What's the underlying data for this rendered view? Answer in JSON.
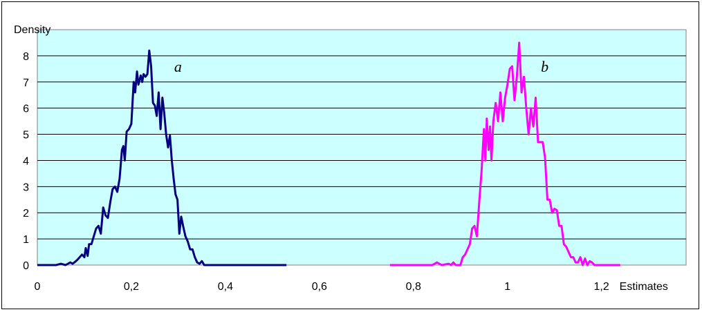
{
  "chart_data": {
    "type": "line",
    "xlabel": "Estimates",
    "ylabel": "Density",
    "xlim": [
      0,
      1.38
    ],
    "ylim": [
      0,
      9
    ],
    "x_ticks": [
      "0",
      "0,2",
      "0,4",
      "0,6",
      "0,8",
      "1",
      "1,2"
    ],
    "x_tick_values": [
      0,
      0.2,
      0.4,
      0.6,
      0.8,
      1.0,
      1.2
    ],
    "y_ticks": [
      "0",
      "1",
      "2",
      "3",
      "4",
      "5",
      "6",
      "7",
      "8"
    ],
    "y_tick_values": [
      0,
      1,
      2,
      3,
      4,
      5,
      6,
      7,
      8
    ],
    "grid": "horizontal",
    "plot_background": "#ccffff",
    "annotations": [
      {
        "text": "a",
        "x": 0.3,
        "y": 7.5
      },
      {
        "text": "b",
        "x": 1.08,
        "y": 7.5
      }
    ],
    "series": [
      {
        "color": "#000080",
        "points": [
          [
            0.0,
            0
          ],
          [
            0.04,
            0
          ],
          [
            0.05,
            0.05
          ],
          [
            0.06,
            0
          ],
          [
            0.07,
            0.1
          ],
          [
            0.075,
            0.05
          ],
          [
            0.08,
            0.12
          ],
          [
            0.085,
            0.2
          ],
          [
            0.09,
            0.3
          ],
          [
            0.095,
            0.4
          ],
          [
            0.1,
            0.3
          ],
          [
            0.103,
            0.65
          ],
          [
            0.107,
            0.35
          ],
          [
            0.11,
            0.8
          ],
          [
            0.115,
            0.8
          ],
          [
            0.12,
            1.1
          ],
          [
            0.125,
            1.4
          ],
          [
            0.13,
            1.5
          ],
          [
            0.135,
            1.2
          ],
          [
            0.14,
            2.2
          ],
          [
            0.145,
            1.9
          ],
          [
            0.15,
            1.8
          ],
          [
            0.155,
            2.4
          ],
          [
            0.16,
            2.9
          ],
          [
            0.165,
            3.0
          ],
          [
            0.17,
            2.8
          ],
          [
            0.175,
            3.3
          ],
          [
            0.18,
            4.4
          ],
          [
            0.183,
            4.55
          ],
          [
            0.186,
            4.0
          ],
          [
            0.19,
            5.1
          ],
          [
            0.195,
            5.2
          ],
          [
            0.2,
            5.4
          ],
          [
            0.205,
            7.0
          ],
          [
            0.208,
            6.6
          ],
          [
            0.212,
            7.4
          ],
          [
            0.215,
            6.9
          ],
          [
            0.22,
            7.25
          ],
          [
            0.223,
            7.0
          ],
          [
            0.226,
            7.3
          ],
          [
            0.23,
            7.2
          ],
          [
            0.234,
            7.3
          ],
          [
            0.238,
            8.2
          ],
          [
            0.242,
            7.6
          ],
          [
            0.246,
            6.2
          ],
          [
            0.25,
            6.1
          ],
          [
            0.254,
            5.7
          ],
          [
            0.258,
            6.6
          ],
          [
            0.262,
            5.2
          ],
          [
            0.266,
            6.4
          ],
          [
            0.27,
            5.8
          ],
          [
            0.274,
            5.0
          ],
          [
            0.278,
            4.5
          ],
          [
            0.282,
            4.95
          ],
          [
            0.286,
            4.0
          ],
          [
            0.29,
            3.3
          ],
          [
            0.294,
            2.7
          ],
          [
            0.298,
            2.5
          ],
          [
            0.302,
            1.2
          ],
          [
            0.306,
            1.85
          ],
          [
            0.31,
            1.5
          ],
          [
            0.315,
            1.1
          ],
          [
            0.32,
            0.9
          ],
          [
            0.325,
            0.6
          ],
          [
            0.33,
            0.6
          ],
          [
            0.335,
            0.3
          ],
          [
            0.34,
            0.1
          ],
          [
            0.345,
            0.05
          ],
          [
            0.35,
            0.15
          ],
          [
            0.355,
            0.0
          ],
          [
            0.36,
            0.0
          ],
          [
            0.53,
            0.0
          ]
        ]
      },
      {
        "color": "#ff00ff",
        "points": [
          [
            0.75,
            0
          ],
          [
            0.84,
            0
          ],
          [
            0.85,
            0.1
          ],
          [
            0.86,
            0
          ],
          [
            0.875,
            0.05
          ],
          [
            0.88,
            0.0
          ],
          [
            0.885,
            0.1
          ],
          [
            0.89,
            0.0
          ],
          [
            0.9,
            0.0
          ],
          [
            0.905,
            0.3
          ],
          [
            0.91,
            0.4
          ],
          [
            0.915,
            0.6
          ],
          [
            0.92,
            0.8
          ],
          [
            0.925,
            1.4
          ],
          [
            0.93,
            1.5
          ],
          [
            0.935,
            1.1
          ],
          [
            0.94,
            2.4
          ],
          [
            0.945,
            3.6
          ],
          [
            0.95,
            5.2
          ],
          [
            0.953,
            4.0
          ],
          [
            0.956,
            5.6
          ],
          [
            0.96,
            4.4
          ],
          [
            0.963,
            5.3
          ],
          [
            0.966,
            4.0
          ],
          [
            0.97,
            5.5
          ],
          [
            0.975,
            6.2
          ],
          [
            0.98,
            5.5
          ],
          [
            0.985,
            6.6
          ],
          [
            0.99,
            5.5
          ],
          [
            0.995,
            6.4
          ],
          [
            1.0,
            6.9
          ],
          [
            1.005,
            7.5
          ],
          [
            1.01,
            7.6
          ],
          [
            1.015,
            6.3
          ],
          [
            1.02,
            7.2
          ],
          [
            1.025,
            8.5
          ],
          [
            1.03,
            6.6
          ],
          [
            1.035,
            7.2
          ],
          [
            1.04,
            6.0
          ],
          [
            1.045,
            5.0
          ],
          [
            1.05,
            6.0
          ],
          [
            1.055,
            5.3
          ],
          [
            1.06,
            6.4
          ],
          [
            1.065,
            4.7
          ],
          [
            1.07,
            4.7
          ],
          [
            1.075,
            4.7
          ],
          [
            1.08,
            4.1
          ],
          [
            1.085,
            2.5
          ],
          [
            1.09,
            2.5
          ],
          [
            1.095,
            2.0
          ],
          [
            1.1,
            2.15
          ],
          [
            1.105,
            2.1
          ],
          [
            1.11,
            1.5
          ],
          [
            1.115,
            1.5
          ],
          [
            1.12,
            0.8
          ],
          [
            1.125,
            0.7
          ],
          [
            1.13,
            0.5
          ],
          [
            1.135,
            0.3
          ],
          [
            1.14,
            0.3
          ],
          [
            1.145,
            0.1
          ],
          [
            1.15,
            0.1
          ],
          [
            1.155,
            0.3
          ],
          [
            1.16,
            0.0
          ],
          [
            1.165,
            0.25
          ],
          [
            1.17,
            0.0
          ],
          [
            1.175,
            0.15
          ],
          [
            1.18,
            0.1
          ],
          [
            1.185,
            0.0
          ],
          [
            1.19,
            0.0
          ],
          [
            1.24,
            0.0
          ]
        ]
      }
    ]
  }
}
